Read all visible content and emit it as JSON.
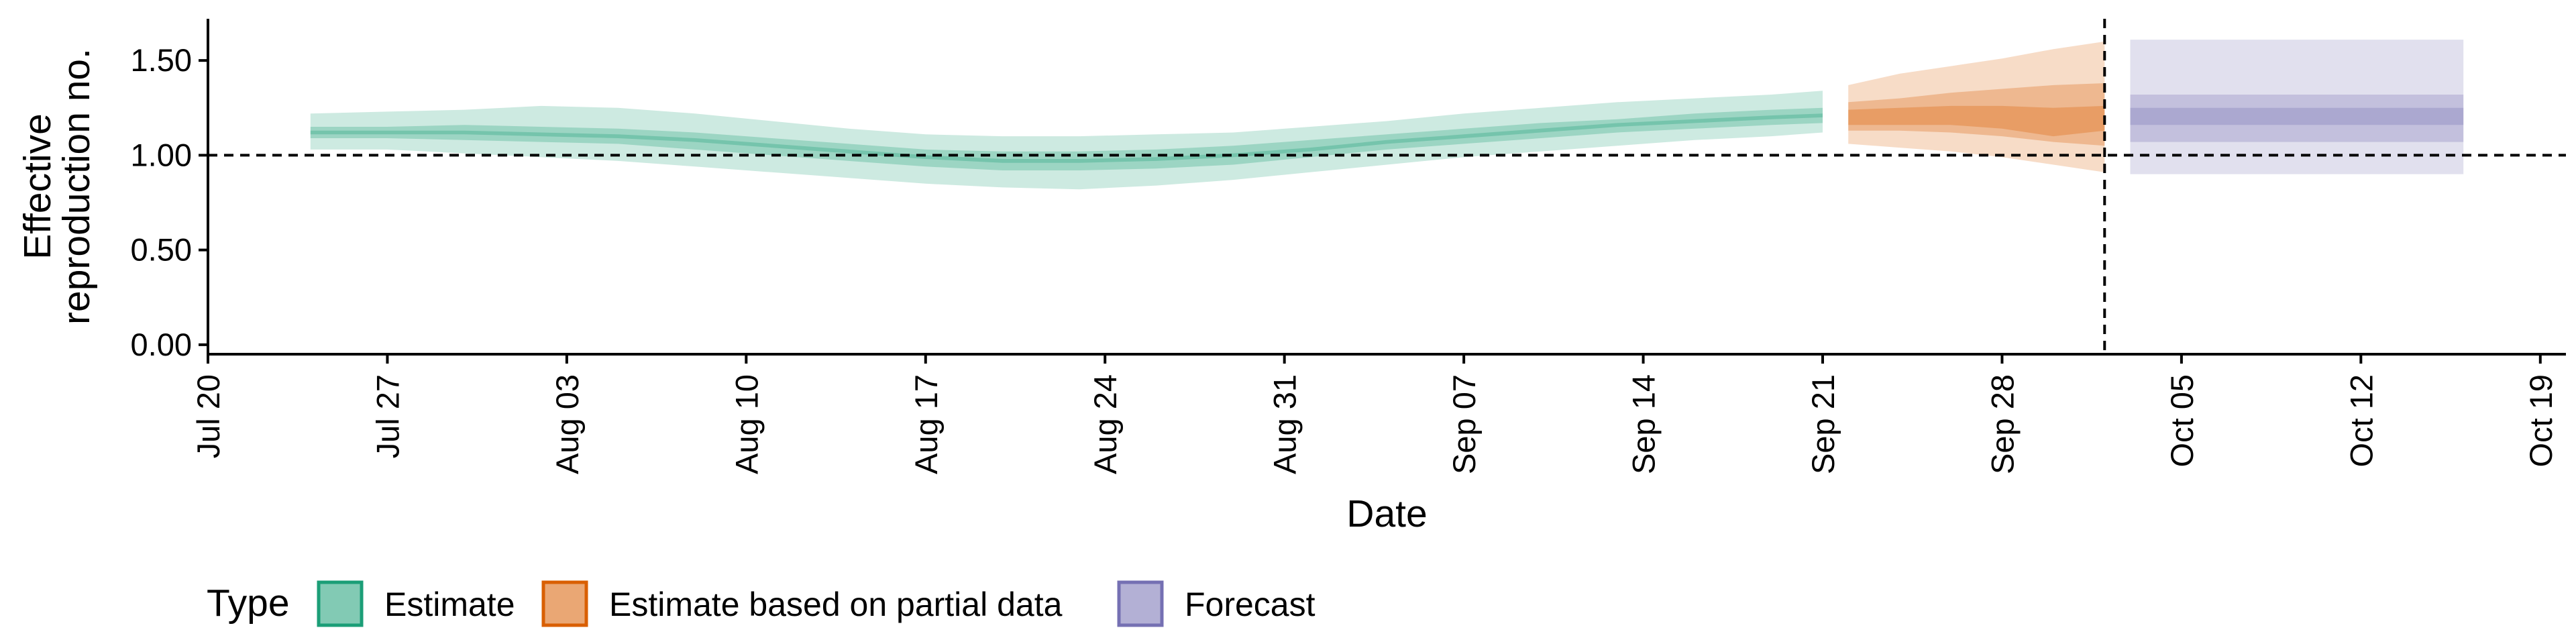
{
  "chart_data": {
    "type": "area",
    "title": "",
    "xlabel": "Date",
    "ylabel": [
      "Effective",
      "reproduction no."
    ],
    "x_ticks": [
      "2020-07-20",
      "2020-07-27",
      "2020-08-03",
      "2020-08-10",
      "2020-08-17",
      "2020-08-24",
      "2020-08-31",
      "2020-09-07",
      "2020-09-14",
      "2020-09-21",
      "2020-09-28",
      "2020-10-05",
      "2020-10-12",
      "2020-10-19"
    ],
    "x_tick_labels": [
      "Jul 20",
      "Jul 27",
      "Aug 03",
      "Aug 10",
      "Aug 17",
      "Aug 24",
      "Aug 31",
      "Sep 07",
      "Sep 14",
      "Sep 21",
      "Sep 28",
      "Oct 05",
      "Oct 12",
      "Oct 19"
    ],
    "y_ticks": [
      0,
      0.5,
      1.0,
      1.5
    ],
    "y_tick_labels": [
      "0.00",
      "0.50",
      "1.00",
      "1.50"
    ],
    "ylim": [
      -0.05,
      1.72
    ],
    "xlim": [
      "2020-07-20",
      "2020-10-20"
    ],
    "reference_hline": 1.0,
    "reference_vline": "2020-10-02",
    "grid": false,
    "legend_position": "bottom-left",
    "legend_title": "Type",
    "colors": {
      "Estimate": "#1b9e77",
      "Estimate based on partial data": "#d95f02",
      "Forecast": "#7570b3"
    },
    "series": [
      {
        "name": "Estimate",
        "x": [
          "2020-07-24",
          "2020-07-27",
          "2020-07-30",
          "2020-08-02",
          "2020-08-05",
          "2020-08-08",
          "2020-08-11",
          "2020-08-14",
          "2020-08-17",
          "2020-08-20",
          "2020-08-23",
          "2020-08-26",
          "2020-08-29",
          "2020-09-01",
          "2020-09-04",
          "2020-09-07",
          "2020-09-10",
          "2020-09-13",
          "2020-09-16",
          "2020-09-19",
          "2020-09-21"
        ],
        "median": [
          1.12,
          1.12,
          1.12,
          1.11,
          1.1,
          1.08,
          1.05,
          1.02,
          0.99,
          0.97,
          0.97,
          0.98,
          1.0,
          1.03,
          1.07,
          1.1,
          1.13,
          1.16,
          1.18,
          1.2,
          1.21
        ],
        "lower_outer": [
          1.03,
          1.03,
          1.01,
          0.99,
          0.97,
          0.94,
          0.91,
          0.88,
          0.85,
          0.83,
          0.82,
          0.84,
          0.87,
          0.91,
          0.95,
          0.99,
          1.02,
          1.05,
          1.08,
          1.1,
          1.12
        ],
        "upper_outer": [
          1.22,
          1.23,
          1.24,
          1.26,
          1.25,
          1.22,
          1.18,
          1.14,
          1.11,
          1.1,
          1.1,
          1.11,
          1.12,
          1.15,
          1.18,
          1.22,
          1.25,
          1.28,
          1.3,
          1.32,
          1.34
        ],
        "lower_mid": [
          1.09,
          1.09,
          1.08,
          1.07,
          1.06,
          1.03,
          1.0,
          0.97,
          0.94,
          0.92,
          0.92,
          0.93,
          0.95,
          0.99,
          1.03,
          1.06,
          1.09,
          1.12,
          1.14,
          1.16,
          1.17
        ],
        "upper_mid": [
          1.15,
          1.15,
          1.16,
          1.15,
          1.14,
          1.12,
          1.09,
          1.06,
          1.03,
          1.02,
          1.02,
          1.03,
          1.05,
          1.08,
          1.11,
          1.14,
          1.17,
          1.19,
          1.22,
          1.24,
          1.25
        ],
        "lower_inner": [
          1.11,
          1.11,
          1.11,
          1.1,
          1.09,
          1.07,
          1.04,
          1.01,
          0.98,
          0.96,
          0.96,
          0.97,
          0.99,
          1.02,
          1.06,
          1.09,
          1.12,
          1.15,
          1.17,
          1.19,
          1.2
        ],
        "upper_inner": [
          1.13,
          1.13,
          1.13,
          1.12,
          1.11,
          1.09,
          1.06,
          1.03,
          1.0,
          0.98,
          0.98,
          0.99,
          1.01,
          1.04,
          1.08,
          1.11,
          1.14,
          1.17,
          1.19,
          1.21,
          1.22
        ]
      },
      {
        "name": "Estimate based on partial data",
        "x": [
          "2020-09-22",
          "2020-09-24",
          "2020-09-26",
          "2020-09-28",
          "2020-09-30",
          "2020-10-02"
        ],
        "median": [
          1.2,
          1.21,
          1.21,
          1.2,
          1.18,
          1.19
        ],
        "lower_outer": [
          1.06,
          1.04,
          1.02,
          0.99,
          0.95,
          0.91
        ],
        "upper_outer": [
          1.37,
          1.43,
          1.47,
          1.51,
          1.56,
          1.6
        ],
        "lower_mid": [
          1.13,
          1.13,
          1.12,
          1.1,
          1.07,
          1.05
        ],
        "upper_mid": [
          1.28,
          1.3,
          1.33,
          1.35,
          1.37,
          1.38
        ],
        "lower_inner": [
          1.16,
          1.16,
          1.16,
          1.14,
          1.1,
          1.13
        ],
        "upper_inner": [
          1.24,
          1.25,
          1.26,
          1.26,
          1.25,
          1.26
        ]
      },
      {
        "name": "Forecast",
        "x": [
          "2020-10-03",
          "2020-10-16"
        ],
        "median": [
          1.21,
          1.21
        ],
        "lower_outer": [
          0.9,
          0.9
        ],
        "upper_outer": [
          1.61,
          1.61
        ],
        "lower_mid": [
          1.07,
          1.07
        ],
        "upper_mid": [
          1.32,
          1.32
        ],
        "lower_inner": [
          1.16,
          1.16
        ],
        "upper_inner": [
          1.25,
          1.25
        ]
      }
    ]
  }
}
